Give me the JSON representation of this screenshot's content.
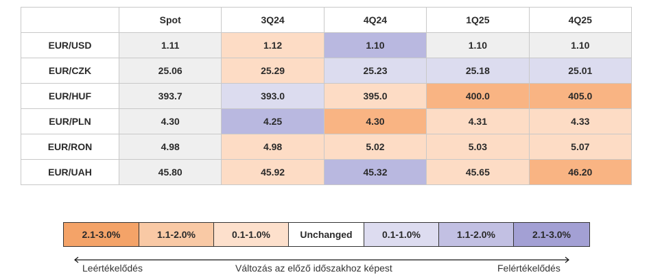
{
  "chart_data": {
    "type": "table",
    "columns": [
      "",
      "Spot",
      "3Q24",
      "4Q24",
      "1Q25",
      "4Q25"
    ],
    "rows": [
      {
        "pair": "EUR/USD",
        "values": [
          "1.11",
          "1.12",
          "1.10",
          "1.10",
          "1.10"
        ],
        "shades": [
          3,
          2,
          5,
          3,
          3
        ]
      },
      {
        "pair": "EUR/CZK",
        "values": [
          "25.06",
          "25.29",
          "25.23",
          "25.18",
          "25.01"
        ],
        "shades": [
          3,
          2,
          4,
          4,
          4
        ]
      },
      {
        "pair": "EUR/HUF",
        "values": [
          "393.7",
          "393.0",
          "395.0",
          "400.0",
          "405.0"
        ],
        "shades": [
          3,
          4,
          2,
          1,
          1
        ]
      },
      {
        "pair": "EUR/PLN",
        "values": [
          "4.30",
          "4.25",
          "4.30",
          "4.31",
          "4.33"
        ],
        "shades": [
          3,
          5,
          1,
          2,
          2
        ]
      },
      {
        "pair": "EUR/RON",
        "values": [
          "4.98",
          "4.98",
          "5.02",
          "5.03",
          "5.07"
        ],
        "shades": [
          3,
          2,
          2,
          2,
          2
        ]
      },
      {
        "pair": "EUR/UAH",
        "values": [
          "45.80",
          "45.92",
          "45.32",
          "45.65",
          "46.20"
        ],
        "shades": [
          3,
          2,
          5,
          2,
          1
        ]
      }
    ]
  },
  "legend": {
    "items": [
      {
        "label": "2.1-3.0%",
        "color": "#f4a368",
        "width": 110
      },
      {
        "label": "1.1-2.0%",
        "color": "#f9c9a5",
        "width": 109
      },
      {
        "label": "0.1-1.0%",
        "color": "#fde0cc",
        "width": 109
      },
      {
        "label": "Unchanged",
        "color": "#ffffff",
        "width": 110
      },
      {
        "label": "0.1-1.0%",
        "color": "#dddcf0",
        "width": 109
      },
      {
        "label": "1.1-2.0%",
        "color": "#c2c0e3",
        "width": 109
      },
      {
        "label": "2.1-3.0%",
        "color": "#a3a0d4",
        "width": 110
      }
    ]
  },
  "shade_colors": [
    "#ffffff",
    "#f9b483",
    "#fddcc5",
    "#efefef",
    "#dcdcef",
    "#b9b8e0"
  ],
  "captions": {
    "left": "Leértékelődés",
    "center": "Változás az előző időszakhoz képest",
    "right": "Felértékelődés"
  }
}
